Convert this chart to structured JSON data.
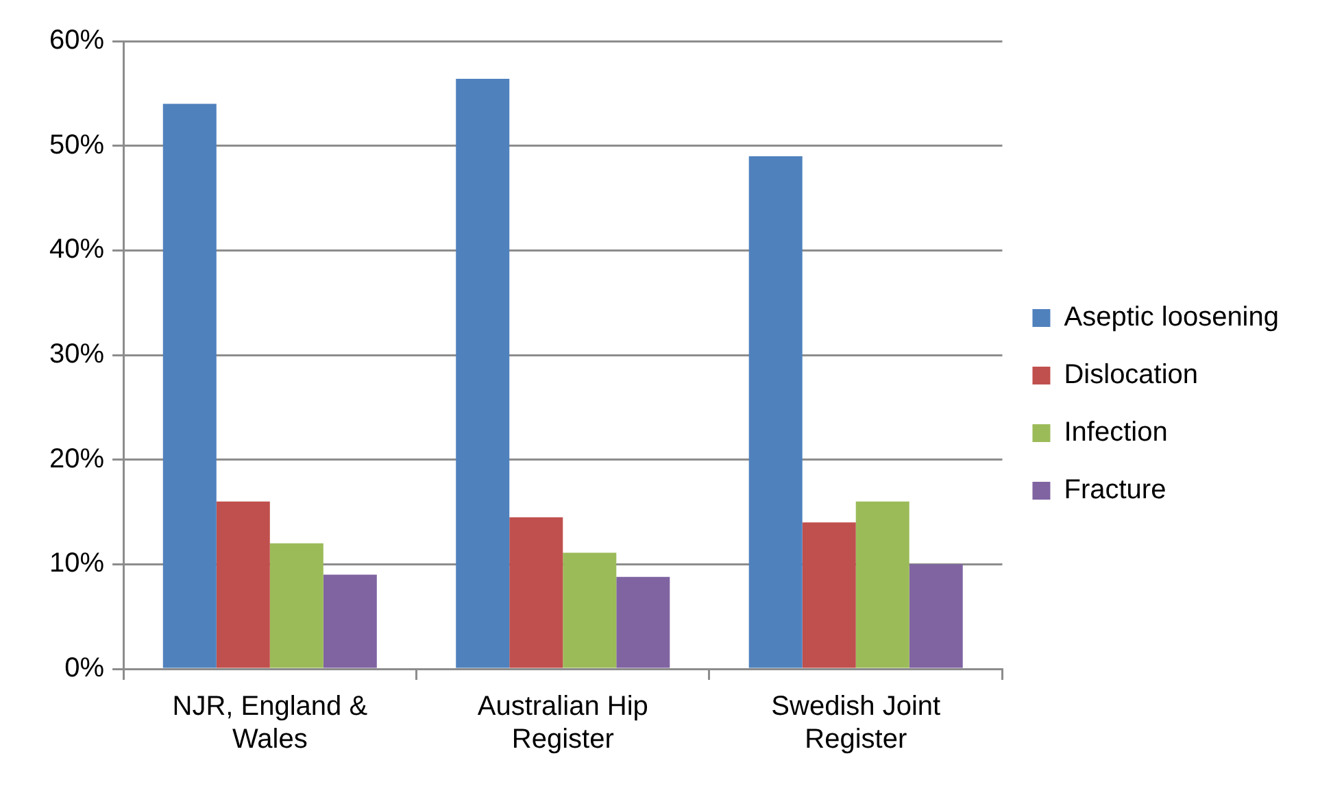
{
  "chart_data": {
    "type": "bar",
    "categories": [
      "NJR, England & Wales",
      "Australian Hip Register",
      "Swedish Joint Register"
    ],
    "series": [
      {
        "name": "Aseptic loosening",
        "color": "#4f81bd",
        "values": [
          54.0,
          56.4,
          49.0
        ]
      },
      {
        "name": "Dislocation",
        "color": "#c0504d",
        "values": [
          16.0,
          14.5,
          14.0
        ]
      },
      {
        "name": "Infection",
        "color": "#9bbb59",
        "values": [
          12.0,
          11.1,
          16.0
        ]
      },
      {
        "name": "Fracture",
        "color": "#8064a2",
        "values": [
          9.0,
          8.8,
          10.0
        ]
      }
    ],
    "ylim": [
      0,
      60
    ],
    "yticks": [
      {
        "value": 0,
        "label": "0%"
      },
      {
        "value": 10,
        "label": "10%"
      },
      {
        "value": 20,
        "label": "20%"
      },
      {
        "value": 30,
        "label": "30%"
      },
      {
        "value": 40,
        "label": "40%"
      },
      {
        "value": 50,
        "label": "50%"
      },
      {
        "value": 60,
        "label": "60%"
      }
    ],
    "grid": "y",
    "legend": "right"
  }
}
